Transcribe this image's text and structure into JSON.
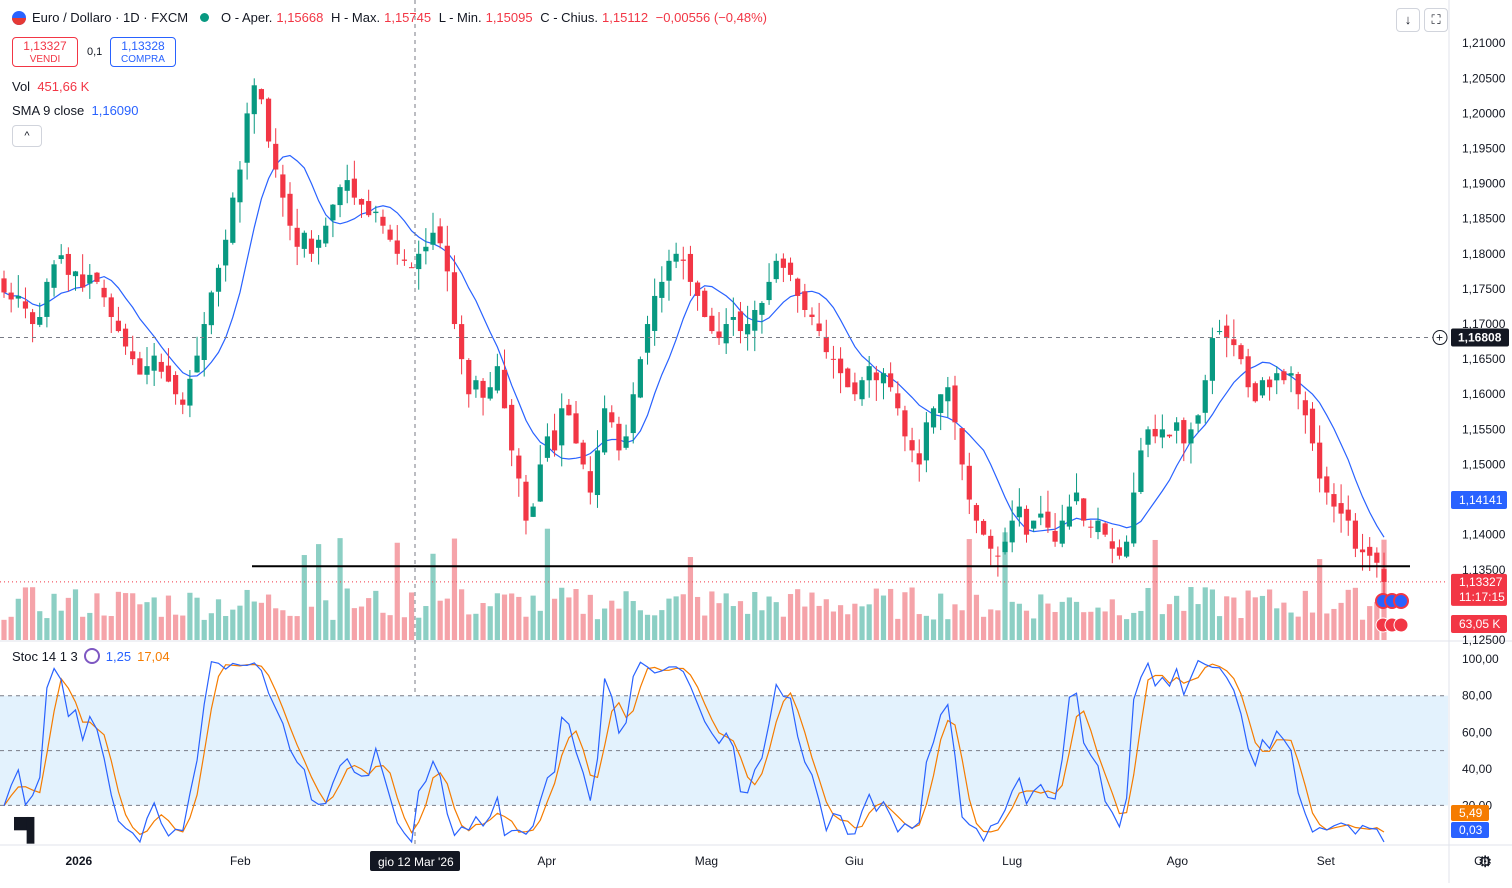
{
  "header": {
    "symbol_title": "Euro / Dollaro · 1D · FXCM",
    "ohlc": {
      "open_label": "O - Aper.",
      "open": "1,15668",
      "high_label": "H - Max.",
      "high": "1,15745",
      "low_label": "L - Min.",
      "low": "1,15095",
      "close_label": "C - Chius.",
      "close": "1,15112",
      "change": "−0,00556 (−0,48%)"
    },
    "sell_price": "1,13327",
    "sell_label": "VENDI",
    "spread": "0,1",
    "buy_price": "1,13328",
    "buy_label": "COMPRA",
    "vol_label": "Vol",
    "vol_value": "451,66 K",
    "sma_label": "SMA 9 close",
    "sma_value": "1,16090",
    "collapse_icon": "^",
    "stoch_label": "Stoc 14 1 3",
    "stoch_k": "1,25",
    "stoch_d": "17,04",
    "buttons": {
      "down_arrow": "↓",
      "fullscreen": "⛶"
    }
  },
  "colors": {
    "up": "#089981",
    "down": "#f23645",
    "sma": "#2962ff",
    "stoch_k": "#2962ff",
    "stoch_d": "#f57c00",
    "vol_up": "#8ccfc4",
    "vol_down": "#f5a3a9",
    "stoch_band": "#e3f2fd"
  },
  "chart_data": [
    {
      "type": "candlestick",
      "title": "Euro / Dollaro · 1D · FXCM",
      "y_ticks": [
        "1,21000",
        "1,20500",
        "1,20000",
        "1,19500",
        "1,19000",
        "1,18500",
        "1,18000",
        "1,17500",
        "1,17000",
        "1,16500",
        "1,16000",
        "1,15500",
        "1,15000",
        "1,14500",
        "1,14000",
        "1,13500",
        "1,12500"
      ],
      "ylim": [
        1.125,
        1.2133
      ],
      "x_labels": [
        "2026",
        "Feb",
        "Mar",
        "Apr",
        "Mag",
        "Giu",
        "Lug",
        "Ago",
        "Set",
        "Ott"
      ],
      "crosshair_label": "gio 12 Mar '26",
      "price_labels": {
        "crosshair_price": "1,16808",
        "sma_last": "1,14141",
        "last_price": "1,13327",
        "countdown": "11:17:15",
        "volume_last": "63,05 K"
      },
      "support_line": 1.1355,
      "series_close": [
        1.1745,
        1.1735,
        1.174,
        1.1722,
        1.17,
        1.171,
        1.176,
        1.1785,
        1.1798,
        1.177,
        1.1775,
        1.1752,
        1.177,
        1.176,
        1.1738,
        1.171,
        1.169,
        1.1668,
        1.165,
        1.1628,
        1.164,
        1.1655,
        1.1632,
        1.1618,
        1.16,
        1.1585,
        1.1622,
        1.1655,
        1.17,
        1.1745,
        1.178,
        1.182,
        1.188,
        1.192,
        1.2,
        1.204,
        1.202,
        1.196,
        1.192,
        1.188,
        1.184,
        1.181,
        1.183,
        1.18,
        1.182,
        1.184,
        1.187,
        1.1895,
        1.1905,
        1.188,
        1.187,
        1.1855,
        1.186,
        1.184,
        1.182,
        1.18,
        1.179,
        1.178,
        1.18,
        1.181,
        1.183,
        1.1815,
        1.1775,
        1.17,
        1.165,
        1.16,
        1.162,
        1.1595,
        1.161,
        1.164,
        1.158,
        1.152,
        1.148,
        1.142,
        1.144,
        1.15,
        1.154,
        1.152,
        1.158,
        1.157,
        1.153,
        1.15,
        1.146,
        1.152,
        1.158,
        1.156,
        1.152,
        1.154,
        1.16,
        1.165,
        1.17,
        1.174,
        1.176,
        1.179,
        1.18,
        1.179,
        1.176,
        1.174,
        1.171,
        1.169,
        1.168,
        1.17,
        1.171,
        1.169,
        1.17,
        1.172,
        1.173,
        1.176,
        1.179,
        1.178,
        1.177,
        1.174,
        1.172,
        1.171,
        1.169,
        1.166,
        1.165,
        1.163,
        1.161,
        1.16,
        1.162,
        1.164,
        1.162,
        1.163,
        1.161,
        1.158,
        1.154,
        1.152,
        1.15,
        1.156,
        1.158,
        1.16,
        1.161,
        1.156,
        1.15,
        1.145,
        1.142,
        1.14,
        1.138,
        1.137,
        1.139,
        1.142,
        1.144,
        1.14,
        1.142,
        1.143,
        1.141,
        1.139,
        1.142,
        1.144,
        1.146,
        1.142,
        1.141,
        1.142,
        1.14,
        1.138,
        1.137,
        1.139,
        1.146,
        1.152,
        1.155,
        1.154,
        1.155,
        1.154,
        1.156,
        1.153,
        1.155,
        1.157,
        1.162,
        1.168,
        1.169,
        1.168,
        1.167,
        1.165,
        1.161,
        1.159,
        1.162,
        1.161,
        1.163,
        1.162,
        1.163,
        1.16,
        1.157,
        1.153,
        1.148,
        1.146,
        1.144,
        1.143,
        1.142,
        1.138,
        1.1375,
        1.137,
        1.136,
        1.13327
      ],
      "x_tick_positions_idx": [
        {
          "label": "2026",
          "i": 10
        },
        {
          "label": "Feb",
          "i": 33
        },
        {
          "label": "Mar",
          "i": 54
        },
        {
          "label": "Apr",
          "i": 76
        },
        {
          "label": "Mag",
          "i": 98
        },
        {
          "label": "Giu",
          "i": 119
        },
        {
          "label": "Lug",
          "i": 141
        },
        {
          "label": "Ago",
          "i": 164
        },
        {
          "label": "Set",
          "i": 185
        },
        {
          "label": "Ott",
          "i": 207
        }
      ]
    },
    {
      "type": "line",
      "title": "Stoc 14 1 3",
      "y_ticks": [
        "100,00",
        "80,00",
        "60,00",
        "40,00",
        "20,00"
      ],
      "ylim": [
        0,
        105
      ],
      "bands": [
        20,
        50,
        80
      ],
      "last_k": "0,03",
      "last_d": "5,49"
    }
  ]
}
